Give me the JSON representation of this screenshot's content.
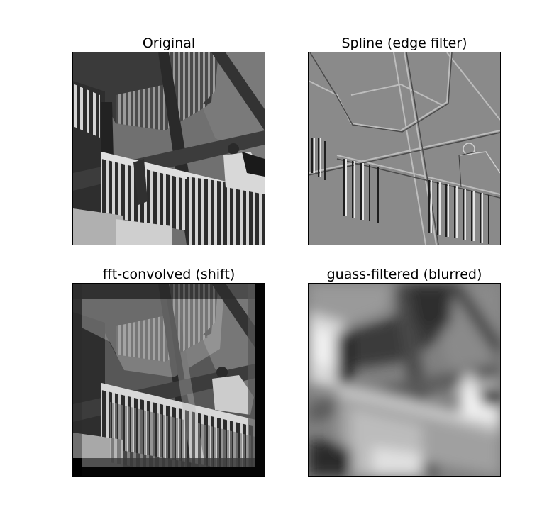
{
  "figure": {
    "panels": [
      {
        "id": "original",
        "title": "Original"
      },
      {
        "id": "spline",
        "title": "Spline (edge filter)"
      },
      {
        "id": "fft",
        "title": "fft-convolved (shift)"
      },
      {
        "id": "gauss",
        "title": "guass-filtered (blurred)"
      }
    ]
  },
  "colors": {
    "frame": "#000000",
    "background": "#ffffff",
    "sky": "#6d6d6d",
    "steel": "#3a3a3a",
    "rail": "#d8d8d8",
    "edge_gray": "#8a8a8a"
  }
}
